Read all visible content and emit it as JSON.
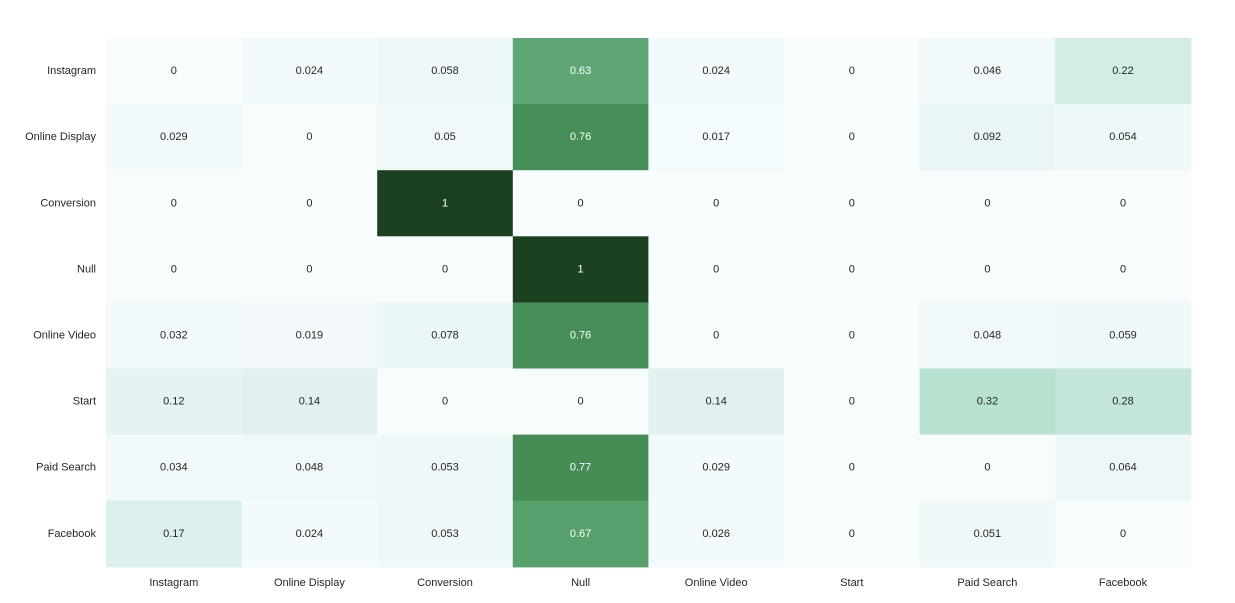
{
  "chart_data": {
    "type": "heatmap",
    "title": "",
    "xlabel": "",
    "ylabel": "",
    "rows": [
      "Instagram",
      "Online Display",
      "Conversion",
      "Null",
      "Online Video",
      "Start",
      "Paid Search",
      "Facebook"
    ],
    "columns": [
      "Instagram",
      "Online Display",
      "Conversion",
      "Null",
      "Online Video",
      "Start",
      "Paid Search",
      "Facebook"
    ],
    "values": [
      [
        0,
        0.024,
        0.058,
        0.63,
        0.024,
        0,
        0.046,
        0.22
      ],
      [
        0.029,
        0,
        0.05,
        0.76,
        0.017,
        0,
        0.092,
        0.054
      ],
      [
        0,
        0,
        1,
        0,
        0,
        0,
        0,
        0
      ],
      [
        0,
        0,
        0,
        1,
        0,
        0,
        0,
        0
      ],
      [
        0.032,
        0.019,
        0.078,
        0.76,
        0,
        0,
        0.048,
        0.059
      ],
      [
        0.12,
        0.14,
        0,
        0,
        0.14,
        0,
        0.32,
        0.28
      ],
      [
        0.034,
        0.048,
        0.053,
        0.77,
        0.029,
        0,
        0,
        0.064
      ],
      [
        0.17,
        0.024,
        0.053,
        0.67,
        0.026,
        0,
        0.051,
        0
      ]
    ],
    "color_scale": "white-to-dark-green",
    "color_range": [
      0,
      1
    ],
    "colorbar": false,
    "grid": false
  }
}
